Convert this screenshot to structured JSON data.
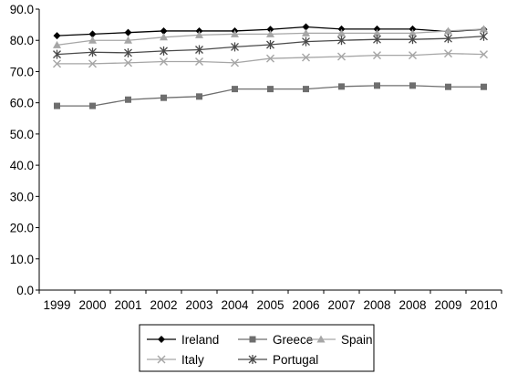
{
  "chart_data": {
    "type": "line",
    "title": "",
    "xlabel": "",
    "ylabel": "",
    "categories": [
      "1999",
      "2000",
      "2001",
      "2002",
      "2003",
      "2004",
      "2005",
      "2006",
      "2007",
      "2008",
      "2008",
      "2009",
      "2010"
    ],
    "y_ticks": [
      "0.0",
      "10.0",
      "20.0",
      "30.0",
      "40.0",
      "50.0",
      "60.0",
      "70.0",
      "80.0",
      "90.0"
    ],
    "ylim": [
      0,
      90
    ],
    "grid": false,
    "legend_position": "bottom",
    "series": [
      {
        "name": "Ireland",
        "marker": "diamond",
        "color": "#000000",
        "values": [
          81.5,
          82.0,
          82.5,
          83.0,
          83.0,
          83.0,
          83.5,
          84.3,
          83.6,
          83.6,
          83.6,
          82.8,
          83.5
        ]
      },
      {
        "name": "Greece",
        "marker": "square",
        "color": "#6e6e6e",
        "values": [
          59.0,
          59.0,
          61.0,
          61.6,
          62.0,
          64.4,
          64.4,
          64.4,
          65.2,
          65.5,
          65.5,
          65.1,
          65.1
        ]
      },
      {
        "name": "Spain",
        "marker": "triangle",
        "color": "#a6a6a6",
        "values": [
          78.5,
          80.0,
          80.0,
          81.0,
          81.7,
          82.0,
          82.0,
          82.3,
          82.3,
          82.3,
          82.3,
          83.0,
          83.6
        ]
      },
      {
        "name": "Italy",
        "marker": "x",
        "color": "#a6a6a6",
        "values": [
          72.5,
          72.5,
          72.8,
          73.2,
          73.2,
          72.8,
          74.2,
          74.5,
          74.8,
          75.2,
          75.2,
          75.8,
          75.5
        ]
      },
      {
        "name": "Portugal",
        "marker": "star",
        "color": "#4a4a4a",
        "values": [
          75.5,
          76.2,
          76.0,
          76.6,
          77.0,
          77.9,
          78.6,
          79.6,
          80.0,
          80.3,
          80.3,
          80.6,
          81.3
        ]
      }
    ]
  }
}
